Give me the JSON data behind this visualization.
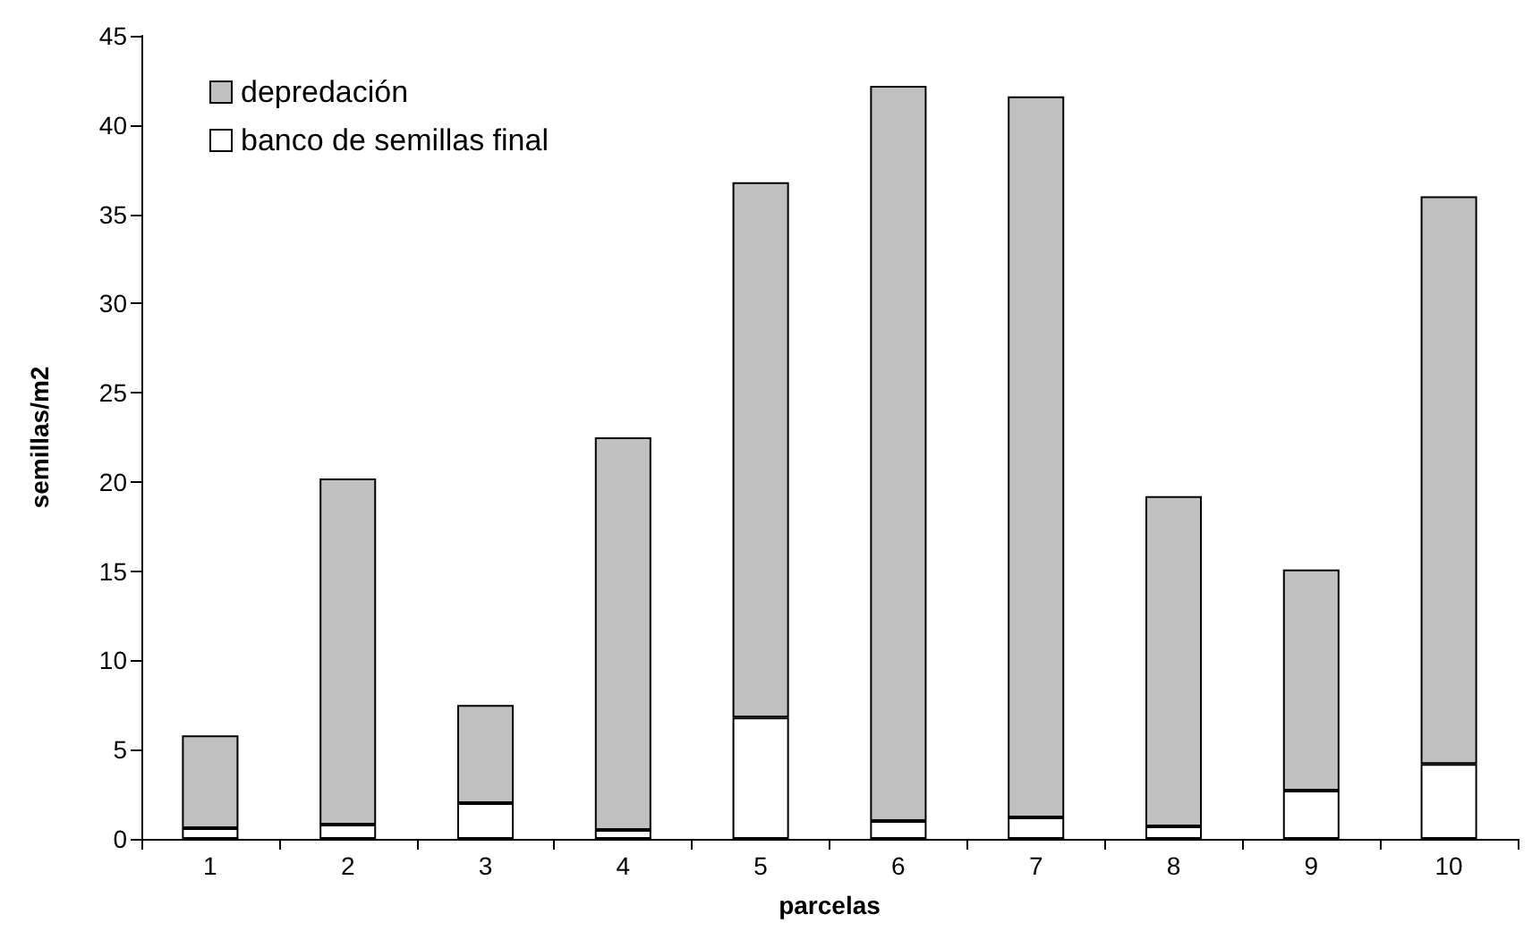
{
  "chart_data": {
    "type": "bar",
    "stacked": true,
    "xlabel": "parcelas",
    "ylabel": "semillas/m2",
    "categories": [
      "1",
      "2",
      "3",
      "4",
      "5",
      "6",
      "7",
      "8",
      "9",
      "10"
    ],
    "series": [
      {
        "name": "banco de semillas final",
        "color": "#ffffff",
        "values": [
          0.6,
          0.8,
          2.0,
          0.5,
          6.8,
          1.0,
          1.2,
          0.7,
          2.7,
          4.2
        ]
      },
      {
        "name": "depredación",
        "color": "#c0c0c0",
        "values": [
          5.2,
          19.4,
          5.5,
          22.0,
          30.0,
          41.2,
          40.4,
          18.5,
          12.4,
          31.8
        ]
      }
    ],
    "ylim": [
      0,
      45
    ],
    "yticks": [
      0,
      5,
      10,
      15,
      20,
      25,
      30,
      35,
      40,
      45
    ],
    "grid": false,
    "legend": "top left"
  }
}
